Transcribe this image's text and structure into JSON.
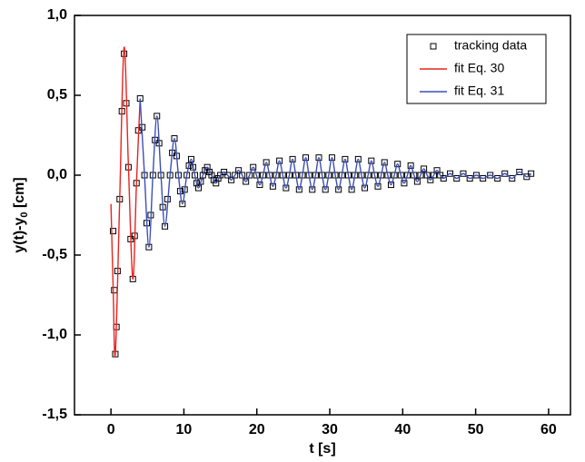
{
  "chart_data": {
    "type": "scatter",
    "xlabel": "t [s]",
    "ylabel_parts": [
      "y(t)-y",
      "0",
      " [cm]"
    ],
    "xlim": [
      -5,
      63
    ],
    "ylim": [
      -1.5,
      1.0
    ],
    "xticks": [
      0,
      10,
      20,
      30,
      40,
      50,
      60
    ],
    "yticks": [
      {
        "value": 1.0,
        "label": "1,0"
      },
      {
        "value": 0.5,
        "label": "0,5"
      },
      {
        "value": 0,
        "label": "0,0"
      },
      {
        "value": -0.5,
        "label": "-0,5"
      },
      {
        "value": -1.0,
        "label": "-1,0"
      },
      {
        "value": -1.5,
        "label": "-1,5"
      }
    ],
    "legend": "upper right",
    "series": [
      {
        "name": "tracking data",
        "color": "#000000",
        "mode": "markers",
        "x": [
          0.3,
          0.45,
          0.6,
          0.75,
          0.9,
          1.2,
          1.5,
          1.8,
          2.1,
          2.4,
          2.7,
          3.0,
          3.25,
          3.5,
          3.75,
          4.0,
          4.3,
          4.6,
          4.9,
          5.2,
          5.45,
          5.75,
          6.05,
          6.3,
          6.6,
          6.85,
          7.1,
          7.4,
          7.75,
          8.1,
          8.4,
          8.7,
          9.0,
          9.25,
          9.5,
          9.8,
          10.1,
          10.4,
          10.7,
          11.0,
          11.25,
          11.5,
          11.75,
          12.0,
          12.3,
          12.6,
          12.9,
          13.2,
          13.5,
          13.8,
          14.1,
          14.4,
          14.7,
          15.0,
          15.5,
          16.0,
          16.5,
          17.0,
          17.5,
          18.0,
          18.5,
          19.0,
          19.5,
          19.95,
          20.4,
          20.85,
          21.3,
          21.75,
          22.2,
          22.65,
          23.1,
          23.55,
          24.0,
          24.45,
          24.9,
          25.35,
          25.8,
          26.25,
          26.7,
          27.15,
          27.6,
          28.05,
          28.5,
          28.95,
          29.4,
          29.85,
          30.3,
          30.75,
          31.2,
          31.65,
          32.1,
          32.55,
          33.0,
          33.45,
          33.9,
          34.35,
          34.8,
          35.25,
          35.7,
          36.15,
          36.6,
          37.05,
          37.5,
          37.95,
          38.4,
          38.85,
          39.3,
          39.75,
          40.2,
          40.65,
          41.1,
          41.55,
          42.0,
          42.45,
          42.9,
          43.35,
          43.8,
          44.25,
          44.7,
          45.15,
          45.6,
          46.5,
          47.4,
          48.3,
          49.2,
          50.1,
          51.0,
          52.0,
          53.0,
          54.0,
          55.0,
          56.0,
          57.0,
          57.6
        ],
        "values": [
          -0.35,
          -0.72,
          -1.12,
          -0.95,
          -0.6,
          -0.15,
          0.4,
          0.76,
          0.45,
          0.05,
          -0.4,
          -0.65,
          -0.38,
          -0.05,
          0.28,
          0.48,
          0.3,
          0.0,
          -0.3,
          -0.45,
          -0.25,
          0.0,
          0.22,
          0.37,
          0.2,
          0.0,
          -0.2,
          -0.32,
          -0.15,
          0.0,
          0.14,
          0.23,
          0.12,
          0.0,
          -0.1,
          -0.18,
          -0.09,
          0.0,
          0.06,
          0.1,
          0.05,
          0.0,
          -0.05,
          -0.08,
          -0.04,
          0.0,
          0.03,
          0.05,
          0.02,
          0.0,
          -0.03,
          -0.05,
          -0.02,
          0.0,
          0.02,
          0.0,
          -0.03,
          0.0,
          0.03,
          0.0,
          -0.04,
          0.0,
          0.05,
          0.0,
          -0.06,
          0.0,
          0.08,
          0.0,
          -0.07,
          0.0,
          0.09,
          0.0,
          -0.08,
          0.0,
          0.1,
          0.0,
          -0.09,
          0.0,
          0.11,
          0.0,
          -0.09,
          0.0,
          0.11,
          0.0,
          -0.09,
          0.0,
          0.11,
          0.0,
          -0.09,
          0.0,
          0.1,
          0.0,
          -0.09,
          0.0,
          0.1,
          0.0,
          -0.08,
          0.0,
          0.09,
          0.0,
          -0.07,
          0.0,
          0.08,
          0.0,
          -0.06,
          0.0,
          0.07,
          0.0,
          -0.05,
          0.0,
          0.06,
          0.0,
          -0.04,
          0.0,
          0.04,
          0.0,
          -0.03,
          0.0,
          0.03,
          0.0,
          -0.02,
          0.01,
          -0.02,
          0.01,
          -0.02,
          0.0,
          -0.02,
          0.0,
          -0.02,
          0.01,
          -0.02,
          0.02,
          -0.01,
          0.01
        ]
      },
      {
        "name": "fit Eq. 30",
        "color": "#e8231f",
        "mode": "line",
        "x": [
          0,
          0.3,
          0.6,
          1.2,
          1.8,
          2.4,
          3.0,
          3.5,
          4.0
        ],
        "values": [
          -0.18,
          -0.7,
          -1.12,
          -0.15,
          0.8,
          0.05,
          -0.65,
          -0.05,
          0.48
        ]
      },
      {
        "name": "fit Eq. 31",
        "color": "#3c4fb4",
        "mode": "line",
        "x": [
          4.0,
          4.6,
          5.2,
          5.75,
          6.3,
          6.85,
          7.4,
          8.1,
          8.7,
          9.25,
          9.8,
          10.4,
          11.0,
          11.5,
          12.0,
          12.6,
          13.2,
          13.8,
          14.4,
          15.0,
          15.5,
          16.0,
          16.5,
          17.0,
          17.5,
          18.0,
          18.5,
          19.0,
          19.5,
          19.95,
          20.4,
          20.85,
          21.3,
          21.75,
          22.2,
          22.65,
          23.1,
          23.55,
          24.0,
          24.45,
          24.9,
          25.35,
          25.8,
          26.25,
          26.7,
          27.15,
          27.6,
          28.05,
          28.5,
          28.95,
          29.4,
          29.85,
          30.3,
          30.75,
          31.2,
          31.65,
          32.1,
          32.55,
          33.0,
          33.45,
          33.9,
          34.35,
          34.8,
          35.25,
          35.7,
          36.15,
          36.6,
          37.05,
          37.5,
          37.95,
          38.4,
          38.85,
          39.3,
          39.75,
          40.2,
          40.65,
          41.1,
          41.55,
          42.0,
          42.45,
          42.9,
          43.35,
          43.8,
          44.25,
          44.7,
          45.15,
          45.6,
          46.5,
          47.4,
          48.3,
          49.2,
          50.1,
          51.0,
          52.0,
          53.0,
          54.0,
          55.0,
          56.0,
          57.0,
          57.6
        ],
        "values": [
          0.48,
          0.0,
          -0.45,
          0.0,
          0.37,
          0.0,
          -0.32,
          0.0,
          0.23,
          0.0,
          -0.18,
          0.0,
          0.1,
          0.0,
          -0.08,
          0.0,
          0.05,
          0.0,
          -0.05,
          0.0,
          0.02,
          0.0,
          -0.03,
          0.0,
          0.03,
          0.0,
          -0.04,
          0.0,
          0.05,
          0.0,
          -0.06,
          0.0,
          0.08,
          0.0,
          -0.07,
          0.0,
          0.09,
          0.0,
          -0.08,
          0.0,
          0.1,
          0.0,
          -0.09,
          0.0,
          0.11,
          0.0,
          -0.09,
          0.0,
          0.11,
          0.0,
          -0.09,
          0.0,
          0.11,
          0.0,
          -0.09,
          0.0,
          0.1,
          0.0,
          -0.09,
          0.0,
          0.1,
          0.0,
          -0.08,
          0.0,
          0.09,
          0.0,
          -0.07,
          0.0,
          0.08,
          0.0,
          -0.06,
          0.0,
          0.07,
          0.0,
          -0.05,
          0.0,
          0.06,
          0.0,
          -0.04,
          0.0,
          0.04,
          0.0,
          -0.03,
          0.0,
          0.03,
          0.0,
          -0.02,
          0.01,
          -0.02,
          0.01,
          -0.02,
          0.0,
          -0.02,
          0.0,
          -0.02,
          0.01,
          -0.02,
          0.02,
          -0.01,
          0.01
        ]
      }
    ]
  }
}
